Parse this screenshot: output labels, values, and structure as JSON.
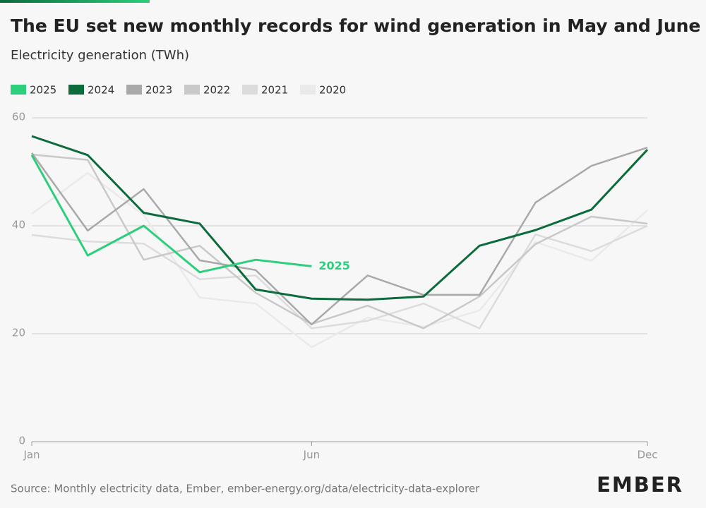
{
  "chart_data": {
    "type": "line",
    "title": "The EU set new monthly records for wind generation in May and June",
    "subtitle": "Electricity generation (TWh)",
    "source": "Source: Monthly electricity data, Ember, ember-energy.org/data/electricity-data-explorer",
    "logo": "EMBER",
    "categories": [
      "Jan",
      null,
      null,
      null,
      null,
      "Jun",
      null,
      null,
      null,
      null,
      null,
      "Dec"
    ],
    "series": [
      {
        "name": "2025",
        "color": "#2dce7c",
        "values": [
          53.1,
          34.5,
          40.0,
          31.4,
          33.7,
          32.5,
          null,
          null,
          null,
          null,
          null,
          null
        ]
      },
      {
        "name": "2024",
        "color": "#0c6b3b",
        "values": [
          56.6,
          53.1,
          42.4,
          40.4,
          28.2,
          26.5,
          26.3,
          26.9,
          36.3,
          39.2,
          43.0,
          54.1
        ]
      },
      {
        "name": "2023",
        "color": "#a9a9a9",
        "values": [
          53.5,
          39.1,
          46.8,
          33.6,
          31.8,
          21.7,
          30.8,
          27.2,
          27.2,
          44.3,
          51.1,
          54.5
        ]
      },
      {
        "name": "2022",
        "color": "#c9c9c9",
        "values": [
          53.2,
          52.2,
          33.7,
          36.3,
          27.6,
          21.8,
          25.2,
          21.0,
          26.9,
          36.6,
          41.7,
          40.4
        ]
      },
      {
        "name": "2021",
        "color": "#dcdcdc",
        "values": [
          38.3,
          37.1,
          36.7,
          30.1,
          30.8,
          21.0,
          22.4,
          25.6,
          21.0,
          38.4,
          35.3,
          40.0
        ]
      },
      {
        "name": "2020",
        "color": "#eaeaea",
        "values": [
          42.2,
          49.8,
          42.0,
          26.7,
          25.6,
          17.5,
          23.0,
          21.3,
          24.3,
          37.0,
          33.5,
          42.9
        ]
      }
    ],
    "ylim": [
      0,
      60
    ],
    "yticks": [
      0,
      20,
      40,
      60
    ],
    "grid": true,
    "legend": "top-left"
  }
}
